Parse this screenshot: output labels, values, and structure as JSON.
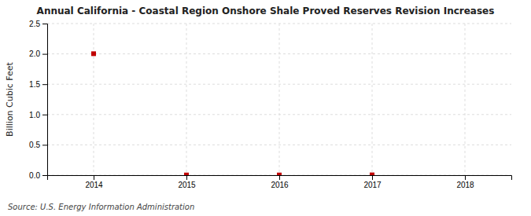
{
  "chart_data": {
    "type": "scatter",
    "title": "Annual California - Coastal Region Onshore Shale Proved Reserves Revision Increases",
    "ylabel": "Billion Cubic Feet",
    "source": "Source: U.S. Energy Information Administration",
    "x": [
      2014,
      2015,
      2016,
      2017
    ],
    "values": [
      2.003,
      0.003,
      0.003,
      0.005
    ],
    "color": "#c00000",
    "marker": "square",
    "xlim": [
      2013.5,
      2018.5
    ],
    "ylim": [
      0.0,
      2.5
    ],
    "xticks": [
      2014,
      2015,
      2016,
      2017,
      2018
    ],
    "yticks": [
      {
        "value": 0.0,
        "label": "0.0"
      },
      0.5,
      {
        "value": 1.0,
        "label": "1.0"
      },
      1.5,
      {
        "value": 2.0,
        "label": "2.0"
      },
      2.5
    ],
    "grid": true
  }
}
